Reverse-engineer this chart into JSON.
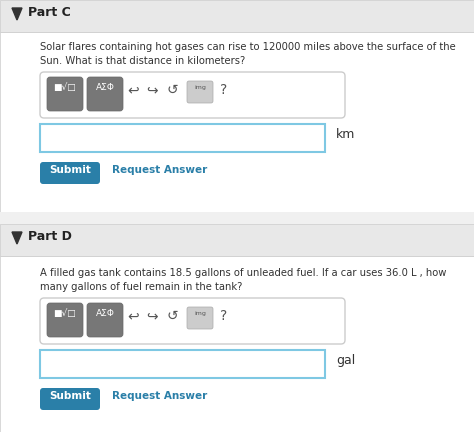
{
  "bg_color": "#f0f0f0",
  "white": "#ffffff",
  "border_color": "#cccccc",
  "header_bg": "#e8e8e8",
  "btn_color": "#2a7fa8",
  "btn_text": "#ffffff",
  "link_color": "#2a7fa8",
  "input_border": "#7ec8e3",
  "part_c_label": "Part C",
  "part_c_question_l1": "Solar flares containing hot gases can rise to 120000 miles above the surface of the",
  "part_c_question_l2": "Sun. What is that distance in kilometers?",
  "part_c_unit": "km",
  "part_d_label": "Part D",
  "part_d_question_l1": "A filled gas tank contains 18.5 gallons of unleaded fuel. If a car uses 36.0 L , how",
  "part_d_question_l2": "many gallons of fuel remain in the tank?",
  "part_d_unit": "gal",
  "submit_label": "Submit",
  "request_label": "Request Answer",
  "fig_width": 4.74,
  "fig_height": 4.32,
  "dpi": 100
}
